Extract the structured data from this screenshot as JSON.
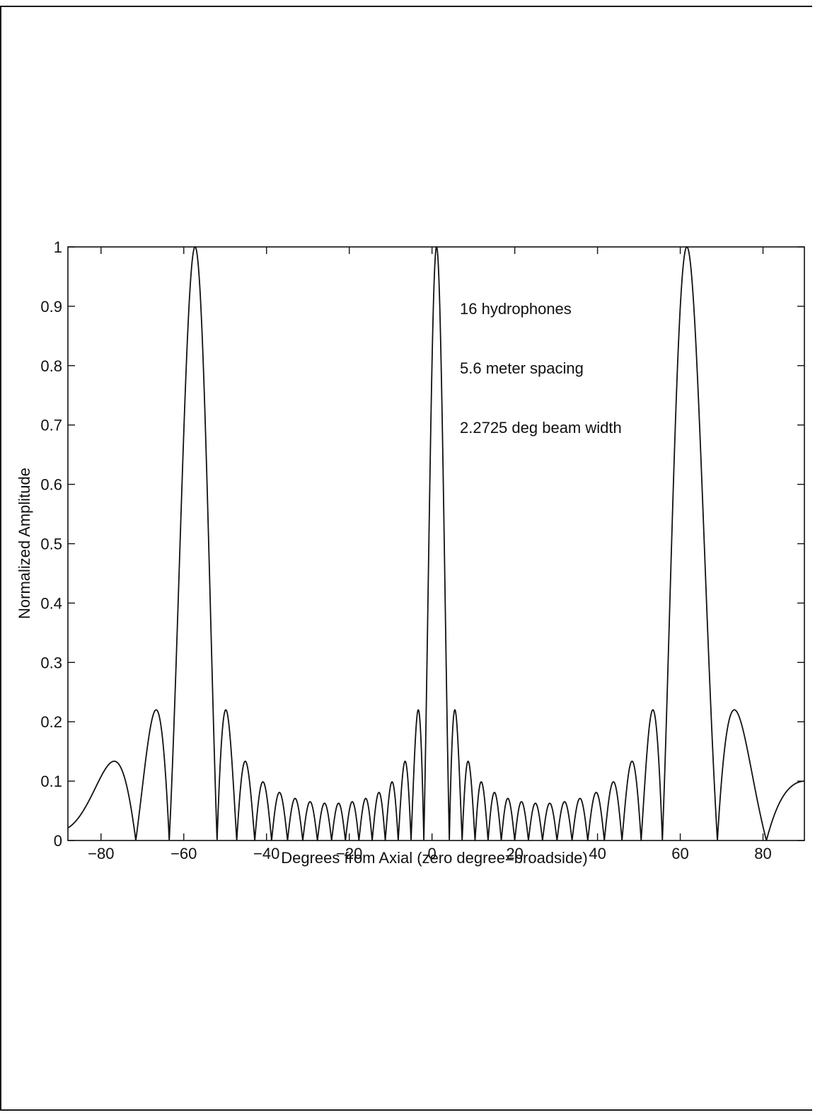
{
  "chart_data": {
    "type": "line",
    "title": "",
    "xlabel": "Degrees from Axial (zero degree=broadside)",
    "ylabel": "Normalized Amplitude",
    "xlim": [
      -88,
      90
    ],
    "ylim": [
      0,
      1
    ],
    "x_ticks": [
      -80,
      -60,
      -40,
      -20,
      0,
      20,
      40,
      60,
      80
    ],
    "x_tick_labels": [
      "−80",
      "−60",
      "−40",
      "−20",
      "0",
      "20",
      "40",
      "60",
      "80"
    ],
    "y_ticks": [
      0,
      0.1,
      0.2,
      0.3,
      0.4,
      0.5,
      0.6,
      0.7,
      0.8,
      0.9,
      1
    ],
    "y_tick_labels": [
      "0",
      "0.1",
      "0.2",
      "0.3",
      "0.4",
      "0.5",
      "0.6",
      "0.7",
      "0.8",
      "0.9",
      "1"
    ],
    "grid": false,
    "series": [
      {
        "main_lobe_peaks_deg": [
          -59.0,
          1.1,
          61.6
        ],
        "peak_amplitude": 1.0,
        "first_sidelobe_amplitude": 0.22,
        "floor_sidelobe_amplitude": 0.064,
        "color": "#111111"
      }
    ],
    "annotations": [
      "16 hydrophones",
      "5.6 meter spacing",
      "2.2725 deg beam width"
    ]
  }
}
